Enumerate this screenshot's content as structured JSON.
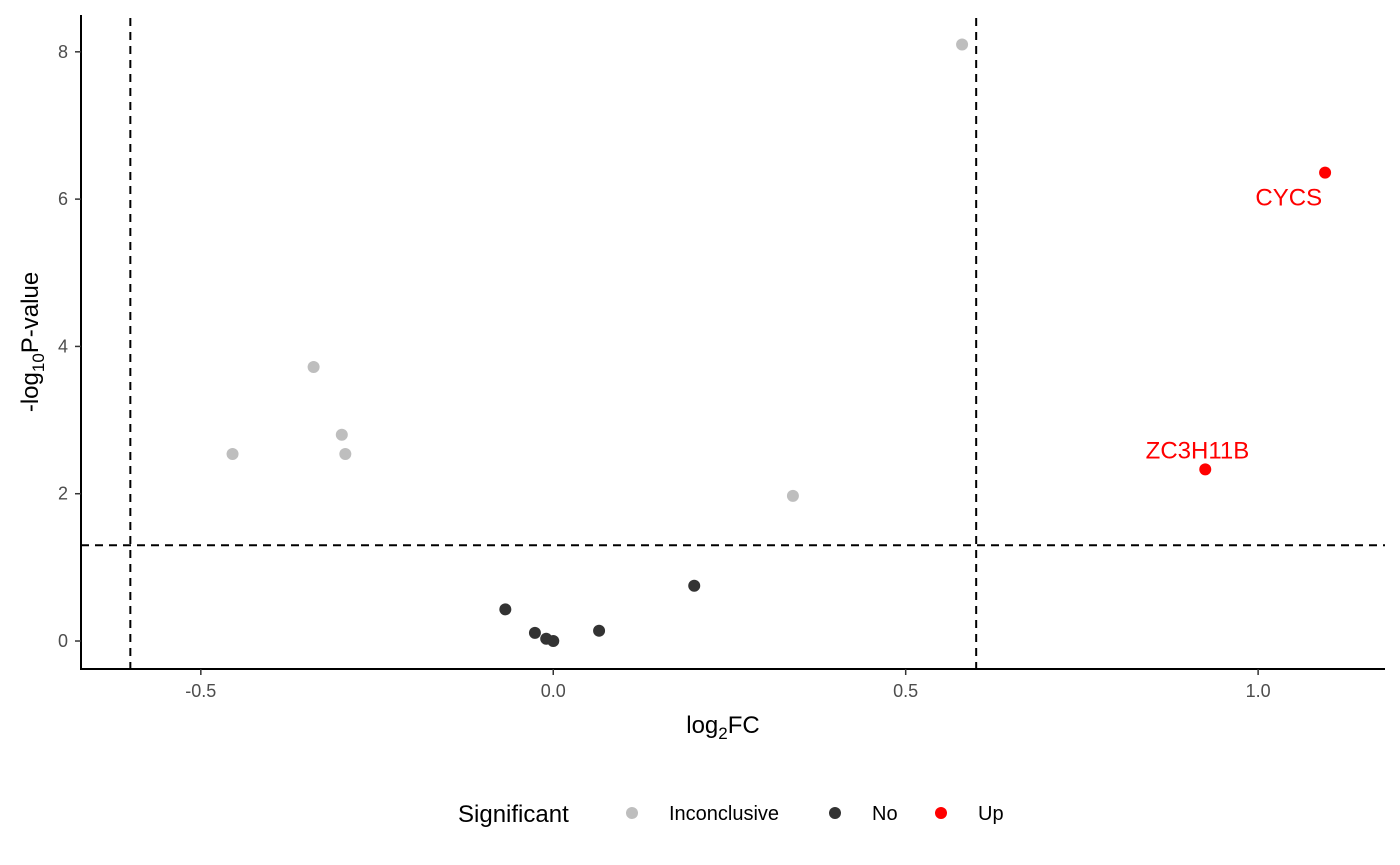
{
  "chart_data": {
    "type": "scatter",
    "title": "",
    "xlabel": {
      "base": "log",
      "sub": "2",
      "rest": "FC"
    },
    "ylabel": {
      "base": "-log",
      "sub": "10",
      "rest": "P-value"
    },
    "xlim": [
      -0.67,
      1.18
    ],
    "ylim": [
      -0.38,
      8.5
    ],
    "xticks": [
      -0.5,
      0.0,
      0.5,
      1.0
    ],
    "xtick_labels": [
      "-0.5",
      "0.0",
      "0.5",
      "1.0"
    ],
    "yticks": [
      0,
      2,
      4,
      6,
      8
    ],
    "ytick_labels": [
      "0",
      "2",
      "4",
      "6",
      "8"
    ],
    "thresholds": {
      "vlines": [
        -0.6,
        0.6
      ],
      "hline": 1.3
    },
    "grid": false,
    "legend": {
      "position": "bottom",
      "title": "Significant",
      "entries": [
        {
          "label": "Inconclusive",
          "color": "#bebebe"
        },
        {
          "label": "No",
          "color": "#333333"
        },
        {
          "label": "Up",
          "color": "#ff0000"
        }
      ]
    },
    "points": [
      {
        "x": 0.58,
        "y": 8.1,
        "group": "Inconclusive"
      },
      {
        "x": -0.34,
        "y": 3.72,
        "group": "Inconclusive"
      },
      {
        "x": -0.3,
        "y": 2.8,
        "group": "Inconclusive"
      },
      {
        "x": -0.295,
        "y": 2.54,
        "group": "Inconclusive"
      },
      {
        "x": -0.455,
        "y": 2.54,
        "group": "Inconclusive"
      },
      {
        "x": 0.34,
        "y": 1.97,
        "group": "Inconclusive"
      },
      {
        "x": 0.2,
        "y": 0.75,
        "group": "No"
      },
      {
        "x": -0.068,
        "y": 0.43,
        "group": "No"
      },
      {
        "x": -0.026,
        "y": 0.11,
        "group": "No"
      },
      {
        "x": -0.01,
        "y": 0.03,
        "group": "No"
      },
      {
        "x": 0.0,
        "y": 0.0,
        "group": "No"
      },
      {
        "x": 0.065,
        "y": 0.14,
        "group": "No"
      },
      {
        "x": 1.095,
        "y": 6.36,
        "group": "Up",
        "label": "CYCS"
      },
      {
        "x": 0.925,
        "y": 2.33,
        "group": "Up",
        "label": "ZC3H11B"
      }
    ]
  }
}
